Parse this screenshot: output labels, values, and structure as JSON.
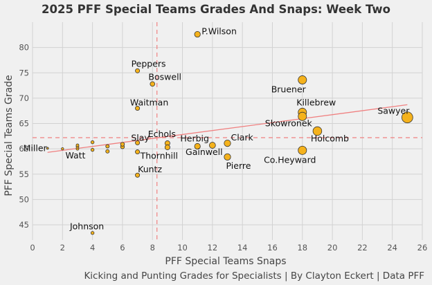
{
  "chart_data": {
    "type": "scatter",
    "title": "2025 PFF Special Teams Grades And Snaps: Week Two",
    "xlabel": "PFF Special Teams Snaps",
    "ylabel": "PFF Special Teams Grade",
    "caption": "Kicking and Punting Grades for Specialists | By Clayton Eckert | Data PFF",
    "xlim": [
      0,
      26
    ],
    "ylim": [
      42,
      85
    ],
    "xticks": [
      0,
      2,
      4,
      6,
      8,
      10,
      12,
      14,
      16,
      18,
      20,
      22,
      24,
      26
    ],
    "yticks": [
      45,
      50,
      55,
      60,
      65,
      70,
      75,
      80
    ],
    "grid": true,
    "point_color": "#f5b21c",
    "point_stroke": "#333333",
    "ref_line_color": "#f08080",
    "ref_lines": {
      "x_mean": 8.3,
      "y_mean": 62.2
    },
    "trend_line": {
      "x": [
        1,
        25
      ],
      "y": [
        59.3,
        68.7
      ]
    },
    "points": [
      {
        "x": 1,
        "y": 60.1,
        "label": "Miller"
      },
      {
        "x": 2,
        "y": 60.0,
        "label": ""
      },
      {
        "x": 3,
        "y": 60.0,
        "label": ""
      },
      {
        "x": 3,
        "y": 60.4,
        "label": ""
      },
      {
        "x": 3,
        "y": 60.7,
        "label": "Watt"
      },
      {
        "x": 4,
        "y": 59.8,
        "label": ""
      },
      {
        "x": 4,
        "y": 61.3,
        "label": ""
      },
      {
        "x": 5,
        "y": 59.5,
        "label": ""
      },
      {
        "x": 5,
        "y": 60.5,
        "label": ""
      },
      {
        "x": 6,
        "y": 60.4,
        "label": ""
      },
      {
        "x": 6,
        "y": 60.9,
        "label": ""
      },
      {
        "x": 7,
        "y": 61.2,
        "label": "Slay"
      },
      {
        "x": 7,
        "y": 59.4,
        "label": "Thornhill"
      },
      {
        "x": 9,
        "y": 61.1,
        "label": "Echols"
      },
      {
        "x": 9,
        "y": 60.3,
        "label": ""
      },
      {
        "x": 4,
        "y": 43.4,
        "label": "Johnson"
      },
      {
        "x": 7,
        "y": 54.8,
        "label": "Kuntz"
      },
      {
        "x": 7,
        "y": 68.0,
        "label": "Waitman"
      },
      {
        "x": 7,
        "y": 75.4,
        "label": "Peppers"
      },
      {
        "x": 8,
        "y": 72.8,
        "label": "Boswell"
      },
      {
        "x": 11,
        "y": 82.6,
        "label": "P.Wilson"
      },
      {
        "x": 11,
        "y": 60.5,
        "label": "Herbig"
      },
      {
        "x": 12,
        "y": 60.7,
        "label": "Gainwell"
      },
      {
        "x": 13,
        "y": 61.1,
        "label": "Clark"
      },
      {
        "x": 13,
        "y": 58.4,
        "label": "Pierre"
      },
      {
        "x": 18,
        "y": 73.6,
        "label": "Bruener"
      },
      {
        "x": 18,
        "y": 67.2,
        "label": "Killebrew"
      },
      {
        "x": 18,
        "y": 66.4,
        "label": "Skowronek"
      },
      {
        "x": 18,
        "y": 59.7,
        "label": "Co.Heyward"
      },
      {
        "x": 19,
        "y": 63.5,
        "label": "Holcomb"
      },
      {
        "x": 25,
        "y": 66.2,
        "label": "Sawyer"
      }
    ]
  }
}
